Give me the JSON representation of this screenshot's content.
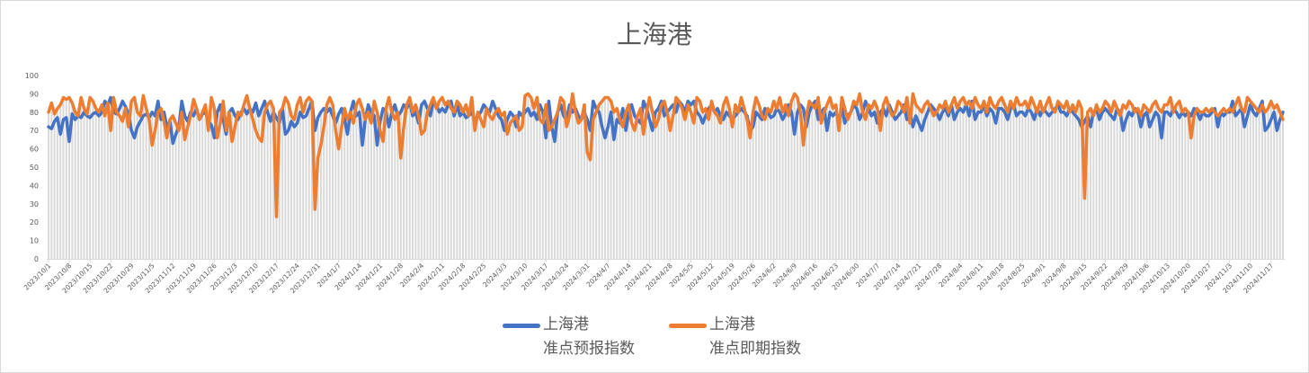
{
  "chart_data": {
    "type": "line",
    "title": "上海港",
    "ylim": [
      0,
      100
    ],
    "y_ticks": [
      0,
      10,
      20,
      30,
      40,
      50,
      60,
      70,
      80,
      90,
      100
    ],
    "grid": false,
    "legend_position": "bottom",
    "x_tick_labels": [
      "2023/10/1",
      "2023/10/8",
      "2023/10/15",
      "2023/10/22",
      "2023/10/29",
      "2023/11/5",
      "2023/11/12",
      "2023/11/19",
      "2023/11/26",
      "2023/12/3",
      "2023/12/10",
      "2023/12/17",
      "2023/12/24",
      "2023/12/31",
      "2024/1/7",
      "2024/1/14",
      "2024/1/21",
      "2024/1/28",
      "2024/2/4",
      "2024/2/11",
      "2024/2/18",
      "2024/2/25",
      "2024/3/3",
      "2024/3/10",
      "2024/3/17",
      "2024/3/24",
      "2024/3/31",
      "2024/4/7",
      "2024/4/14",
      "2024/4/21",
      "2024/4/28",
      "2024/5/5",
      "2024/5/12",
      "2024/5/19",
      "2024/5/26",
      "2024/6/2",
      "2024/6/9",
      "2024/6/16",
      "2024/6/23",
      "2024/6/30",
      "2024/7/7",
      "2024/7/14",
      "2024/7/21",
      "2024/7/28",
      "2024/8/4",
      "2024/8/11",
      "2024/8/18",
      "2024/8/25",
      "2024/9/1",
      "2024/9/8",
      "2024/9/15",
      "2024/9/22",
      "2024/9/29",
      "2024/10/6",
      "2024/10/13",
      "2024/10/20",
      "2024/10/27",
      "2024/11/3",
      "2024/11/10",
      "2024/11/17"
    ],
    "series": [
      {
        "name_line1": "上海港",
        "name_line2": "准点预报指数",
        "color": "#4472C4",
        "values": [
          72,
          71,
          75,
          77,
          68,
          76,
          77,
          64,
          79,
          76,
          78,
          77,
          80,
          78,
          77,
          79,
          80,
          78,
          80,
          86,
          84,
          88,
          80,
          79,
          82,
          86,
          83,
          79,
          70,
          66,
          72,
          75,
          78,
          79,
          77,
          80,
          78,
          86,
          76,
          80,
          72,
          75,
          63,
          68,
          72,
          86,
          78,
          75,
          80,
          78,
          82,
          76,
          79,
          80,
          75,
          73,
          66,
          80,
          84,
          76,
          68,
          80,
          82,
          78,
          76,
          80,
          82,
          79,
          82,
          80,
          85,
          78,
          82,
          86,
          80,
          75,
          80,
          77,
          74,
          82,
          68,
          70,
          75,
          72,
          74,
          80,
          77,
          78,
          82,
          86,
          70,
          77,
          80,
          82,
          80,
          82,
          78,
          74,
          79,
          82,
          76,
          68,
          80,
          86,
          78,
          80,
          62,
          76,
          84,
          80,
          78,
          62,
          75,
          82,
          80,
          72,
          80,
          84,
          78,
          80,
          84,
          82,
          86,
          78,
          80,
          74,
          84,
          86,
          82,
          78,
          86,
          84,
          80,
          82,
          80,
          84,
          86,
          78,
          84,
          78,
          80,
          77,
          78,
          80,
          76,
          78,
          80,
          84,
          82,
          80,
          86,
          82,
          78,
          76,
          70,
          76,
          80,
          78,
          72,
          80,
          78,
          80,
          82,
          78,
          80,
          76,
          84,
          80,
          66,
          86,
          72,
          64,
          80,
          84,
          78,
          76,
          84,
          80,
          82,
          78,
          76,
          80,
          76,
          70,
          86,
          82,
          80,
          72,
          66,
          72,
          80,
          65,
          76,
          74,
          82,
          70,
          80,
          84,
          78,
          76,
          74,
          86,
          82,
          76,
          70,
          80,
          82,
          86,
          78,
          80,
          82,
          84,
          80,
          86,
          84,
          80,
          86,
          84,
          86,
          80,
          78,
          74,
          78,
          82,
          84,
          80,
          82,
          78,
          76,
          80,
          78,
          76,
          78,
          80,
          82,
          80,
          78,
          70,
          72,
          80,
          78,
          76,
          82,
          80,
          77,
          78,
          82,
          80,
          76,
          79,
          84,
          80,
          68,
          80,
          84,
          82,
          72,
          80,
          84,
          86,
          76,
          80,
          82,
          70,
          80,
          78,
          80,
          76,
          82,
          74,
          78,
          80,
          84,
          82,
          76,
          80,
          86,
          82,
          78,
          80,
          74,
          80,
          82,
          78,
          84,
          80,
          76,
          78,
          80,
          84,
          76,
          80,
          72,
          78,
          74,
          70,
          76,
          80,
          84,
          82,
          80,
          76,
          80,
          82,
          78,
          84,
          76,
          80,
          82,
          80,
          84,
          78,
          86,
          76,
          80,
          80,
          84,
          78,
          82,
          80,
          74,
          82,
          82,
          80,
          76,
          82,
          84,
          78,
          80,
          80,
          78,
          82,
          80,
          76,
          82,
          78,
          82,
          80,
          78,
          80,
          82,
          84,
          80,
          80,
          78,
          82,
          80,
          78,
          76,
          72,
          75,
          78,
          72,
          80,
          82,
          76,
          80,
          82,
          80,
          78,
          76,
          82,
          80,
          70,
          76,
          80,
          78,
          82,
          80,
          72,
          78,
          80,
          72,
          76,
          80,
          78,
          66,
          80,
          80,
          78,
          82,
          80,
          77,
          80,
          78,
          80,
          78,
          82,
          80,
          76,
          80,
          78,
          78,
          80,
          82,
          72,
          80,
          78,
          80,
          80,
          86,
          78,
          80,
          82,
          72,
          78,
          84,
          80,
          78,
          82,
          86,
          70,
          72,
          76,
          80,
          70,
          76,
          80
        ]
      },
      {
        "name_line1": "上海港",
        "name_line2": "准点即期指数",
        "color": "#ED7D31",
        "values": [
          80,
          85,
          79,
          82,
          84,
          88,
          87,
          88,
          85,
          80,
          78,
          88,
          82,
          79,
          88,
          86,
          82,
          80,
          84,
          78,
          85,
          70,
          88,
          80,
          78,
          75,
          82,
          72,
          86,
          88,
          80,
          78,
          89,
          82,
          76,
          62,
          70,
          80,
          82,
          75,
          66,
          76,
          78,
          74,
          70,
          80,
          65,
          72,
          78,
          87,
          82,
          76,
          80,
          84,
          70,
          88,
          82,
          66,
          74,
          86,
          70,
          80,
          64,
          72,
          80,
          78,
          84,
          89,
          82,
          76,
          70,
          66,
          64,
          80,
          84,
          86,
          82,
          23,
          80,
          82,
          88,
          85,
          78,
          76,
          84,
          88,
          80,
          86,
          88,
          86,
          27,
          55,
          62,
          72,
          84,
          88,
          84,
          70,
          60,
          72,
          82,
          76,
          80,
          74,
          84,
          87,
          82,
          76,
          80,
          74,
          86,
          80,
          70,
          64,
          82,
          88,
          80,
          76,
          80,
          55,
          72,
          84,
          88,
          80,
          84,
          78,
          68,
          70,
          80,
          84,
          88,
          82,
          86,
          88,
          84,
          86,
          82,
          80,
          86,
          84,
          80,
          84,
          78,
          88,
          70,
          80,
          76,
          72,
          82,
          78,
          76,
          80,
          82,
          78,
          80,
          68,
          74,
          76,
          78,
          70,
          72,
          89,
          90,
          88,
          82,
          88,
          76,
          74,
          84,
          70,
          72,
          76,
          80,
          88,
          86,
          72,
          78,
          90,
          80,
          74,
          76,
          84,
          58,
          54,
          76,
          80,
          84,
          86,
          88,
          88,
          86,
          80,
          82,
          76,
          72,
          80,
          84,
          74,
          70,
          78,
          82,
          68,
          80,
          88,
          80,
          72,
          76,
          84,
          86,
          80,
          70,
          78,
          88,
          86,
          82,
          76,
          84,
          80,
          74,
          88,
          86,
          80,
          82,
          76,
          86,
          80,
          78,
          74,
          84,
          88,
          82,
          72,
          84,
          80,
          88,
          82,
          76,
          66,
          80,
          88,
          84,
          78,
          76,
          82,
          80,
          86,
          82,
          88,
          80,
          84,
          78,
          86,
          90,
          88,
          80,
          62,
          78,
          86,
          84,
          82,
          88,
          74,
          80,
          84,
          88,
          82,
          84,
          70,
          88,
          82,
          76,
          80,
          86,
          84,
          90,
          80,
          76,
          84,
          82,
          86,
          82,
          70,
          84,
          88,
          82,
          78,
          80,
          86,
          84,
          80,
          88,
          74,
          90,
          84,
          82,
          80,
          84,
          86,
          82,
          78,
          80,
          84,
          82,
          86,
          80,
          84,
          88,
          82,
          86,
          88,
          84,
          86,
          82,
          88,
          84,
          82,
          86,
          80,
          88,
          84,
          82,
          86,
          88,
          84,
          80,
          86,
          82,
          88,
          84,
          84,
          86,
          82,
          88,
          84,
          80,
          86,
          80,
          84,
          88,
          82,
          80,
          86,
          84,
          82,
          86,
          80,
          84,
          80,
          86,
          82,
          33,
          80,
          82,
          78,
          84,
          80,
          82,
          86,
          84,
          80,
          86,
          82,
          78,
          84,
          82,
          86,
          84,
          80,
          82,
          78,
          84,
          82,
          80,
          84,
          86,
          82,
          80,
          84,
          84,
          88,
          80,
          84,
          86,
          80,
          82,
          80,
          66,
          78,
          82,
          80,
          80,
          82,
          80,
          82,
          80,
          78,
          80,
          82,
          80,
          82,
          80,
          84,
          88,
          82,
          80,
          88,
          86,
          84,
          82,
          80,
          84,
          80,
          82,
          86,
          82,
          84,
          80,
          76
        ]
      }
    ]
  }
}
